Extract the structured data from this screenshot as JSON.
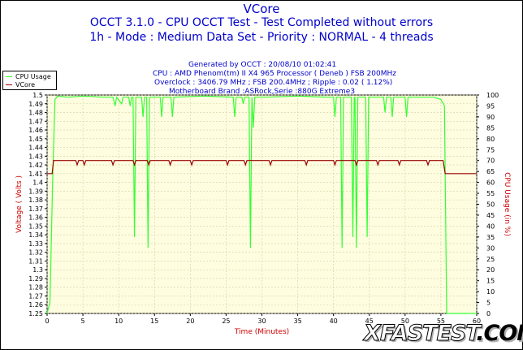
{
  "chart_data": {
    "type": "line",
    "title": "VCore",
    "subtitle_1": "OCCT 3.1.0 - CPU OCCT Test - Test Completed without errors",
    "subtitle_2": "1h - Mode : Medium Data Set - Priority : NORMAL - 4 threads",
    "info_lines": [
      "Generated by OCCT : 20/08/10 01:02:41",
      "CPU : AMD Phenom(tm) II X4 965 Processor ( Deneb ) FSB 200MHz",
      "Overclock : 3406.79 MHz ; FSB 200.4MHz ; Ripple : 0.02 ( 1.12%)",
      "Motherboard Brand :ASRock,Serie :880G Extreme3"
    ],
    "xlabel": "Time (Minutes)",
    "ylabel_left": "Voltage ( Volts )",
    "ylabel_right": "CPU Usage (in %)",
    "xlim": [
      0,
      60
    ],
    "ylim_left": [
      1.25,
      1.5
    ],
    "ylim_right": [
      0,
      100
    ],
    "x_ticks": [
      0,
      5,
      10,
      15,
      20,
      25,
      30,
      35,
      40,
      45,
      50,
      55,
      60
    ],
    "y_left_ticks": [
      "1.25",
      "1.26",
      "1.27",
      "1.28",
      "1.29",
      "1.3",
      "1.31",
      "1.32",
      "1.33",
      "1.34",
      "1.35",
      "1.36",
      "1.37",
      "1.38",
      "1.39",
      "1.4",
      "1.41",
      "1.42",
      "1.43",
      "1.44",
      "1.45",
      "1.46",
      "1.47",
      "1.48",
      "1.49",
      "1.5"
    ],
    "y_right_ticks": [
      0,
      5,
      10,
      15,
      20,
      25,
      30,
      35,
      40,
      45,
      50,
      55,
      60,
      65,
      70,
      75,
      80,
      85,
      90,
      95,
      100
    ],
    "grid": true,
    "legend_placement": "top-left outside",
    "series": [
      {
        "name": "CPU Usage",
        "axis": "right",
        "color": "#33ff33",
        "points": [
          [
            0,
            0
          ],
          [
            0.4,
            5
          ],
          [
            0.8,
            65
          ],
          [
            1.1,
            98
          ],
          [
            1.5,
            99.5
          ],
          [
            3,
            99
          ],
          [
            5,
            99.5
          ],
          [
            8,
            99
          ],
          [
            9.2,
            99
          ],
          [
            9.5,
            95
          ],
          [
            9.7,
            99
          ],
          [
            10.4,
            96
          ],
          [
            10.6,
            99
          ],
          [
            11.4,
            99
          ],
          [
            11.6,
            95
          ],
          [
            11.8,
            99
          ],
          [
            12,
            99
          ],
          [
            12.2,
            35
          ],
          [
            12.4,
            99
          ],
          [
            13.2,
            99
          ],
          [
            13.4,
            90
          ],
          [
            13.6,
            99
          ],
          [
            13.9,
            99
          ],
          [
            14.1,
            30
          ],
          [
            14.3,
            99
          ],
          [
            15.8,
            99
          ],
          [
            16,
            90
          ],
          [
            16.2,
            99
          ],
          [
            17.3,
            99
          ],
          [
            17.5,
            90
          ],
          [
            17.7,
            99
          ],
          [
            22,
            99.5
          ],
          [
            26,
            99
          ],
          [
            26.2,
            90
          ],
          [
            26.4,
            99
          ],
          [
            27.2,
            99
          ],
          [
            27.4,
            96
          ],
          [
            27.6,
            99
          ],
          [
            28.2,
            99
          ],
          [
            28.4,
            30
          ],
          [
            28.6,
            99
          ],
          [
            28.8,
            85
          ],
          [
            29,
            99
          ],
          [
            30.5,
            99
          ],
          [
            35,
            99.5
          ],
          [
            39,
            99
          ],
          [
            40,
            99
          ],
          [
            40.2,
            90
          ],
          [
            40.4,
            99
          ],
          [
            41,
            99
          ],
          [
            41.2,
            30
          ],
          [
            41.4,
            99
          ],
          [
            42.5,
            99
          ],
          [
            42.7,
            35
          ],
          [
            42.9,
            99
          ],
          [
            43,
            99
          ],
          [
            43.2,
            30
          ],
          [
            43.4,
            99
          ],
          [
            44.5,
            99
          ],
          [
            44.7,
            35
          ],
          [
            44.9,
            99
          ],
          [
            47,
            99
          ],
          [
            47.2,
            92
          ],
          [
            47.4,
            99
          ],
          [
            48,
            99
          ],
          [
            48.2,
            90
          ],
          [
            48.4,
            99
          ],
          [
            50,
            99
          ],
          [
            50.2,
            90
          ],
          [
            50.4,
            99
          ],
          [
            54,
            99
          ],
          [
            55,
            98
          ],
          [
            55.5,
            95
          ],
          [
            55.8,
            0
          ],
          [
            60,
            0
          ]
        ]
      },
      {
        "name": "VCore",
        "axis": "left",
        "color": "#990000",
        "points": [
          [
            0,
            1.41
          ],
          [
            0.7,
            1.41
          ],
          [
            0.9,
            1.425
          ],
          [
            4,
            1.425
          ],
          [
            4.2,
            1.42
          ],
          [
            4.4,
            1.425
          ],
          [
            5,
            1.425
          ],
          [
            5.2,
            1.42
          ],
          [
            5.4,
            1.425
          ],
          [
            9,
            1.425
          ],
          [
            9.2,
            1.42
          ],
          [
            9.4,
            1.425
          ],
          [
            12,
            1.425
          ],
          [
            12.2,
            1.42
          ],
          [
            12.4,
            1.425
          ],
          [
            14,
            1.425
          ],
          [
            14.2,
            1.42
          ],
          [
            14.4,
            1.425
          ],
          [
            17,
            1.425
          ],
          [
            17.2,
            1.42
          ],
          [
            17.4,
            1.425
          ],
          [
            20,
            1.425
          ],
          [
            20.2,
            1.42
          ],
          [
            20.4,
            1.425
          ],
          [
            25,
            1.425
          ],
          [
            25.2,
            1.42
          ],
          [
            25.4,
            1.425
          ],
          [
            27.5,
            1.425
          ],
          [
            27.7,
            1.42
          ],
          [
            27.9,
            1.425
          ],
          [
            31,
            1.425
          ],
          [
            31.2,
            1.42
          ],
          [
            31.4,
            1.425
          ],
          [
            36,
            1.425
          ],
          [
            36.2,
            1.42
          ],
          [
            36.4,
            1.425
          ],
          [
            40,
            1.425
          ],
          [
            40.2,
            1.42
          ],
          [
            40.4,
            1.425
          ],
          [
            43,
            1.425
          ],
          [
            43.2,
            1.42
          ],
          [
            43.4,
            1.425
          ],
          [
            46,
            1.425
          ],
          [
            46.2,
            1.42
          ],
          [
            46.4,
            1.425
          ],
          [
            49,
            1.425
          ],
          [
            49.2,
            1.42
          ],
          [
            49.4,
            1.425
          ],
          [
            53,
            1.425
          ],
          [
            53.2,
            1.42
          ],
          [
            53.4,
            1.425
          ],
          [
            55,
            1.425
          ],
          [
            55.3,
            1.425
          ],
          [
            55.6,
            1.41
          ],
          [
            60,
            1.41
          ]
        ]
      }
    ]
  },
  "watermark": {
    "text_main": "XFASTEST",
    "text_dot": ".",
    "text_tld": "COM"
  },
  "colors": {
    "plot_bg": "#fffde0",
    "grid": "#d0d0a0",
    "axis_text": "#000000",
    "label_red": "#cc0000",
    "title_blue": "#0000cc"
  }
}
